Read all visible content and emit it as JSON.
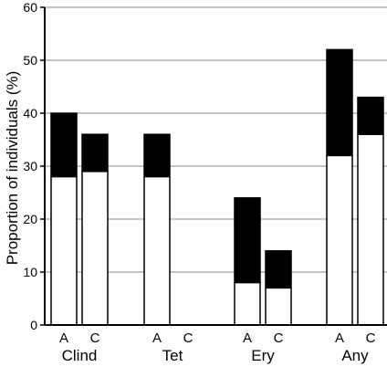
{
  "chart_data": {
    "type": "bar",
    "stacked": true,
    "title": "",
    "xlabel": "",
    "ylabel": "Proportion of individuals (%)",
    "ylim": [
      0,
      60
    ],
    "yticks": [
      0,
      10,
      20,
      30,
      40,
      50,
      60
    ],
    "grid": "horizontal",
    "colors": {
      "lower": "#ffffff",
      "upper": "#000000",
      "outline": "#000000",
      "grid": "#888888"
    },
    "groups": [
      {
        "label": "Clind",
        "bars": [
          {
            "label": "A",
            "lower": 28,
            "total": 40
          },
          {
            "label": "C",
            "lower": 29,
            "total": 36
          }
        ]
      },
      {
        "label": "Tet",
        "bars": [
          {
            "label": "A",
            "lower": 28,
            "total": 36
          },
          {
            "label": "C",
            "lower": 0,
            "total": 0
          }
        ]
      },
      {
        "label": "Ery",
        "bars": [
          {
            "label": "A",
            "lower": 8,
            "total": 24
          },
          {
            "label": "C",
            "lower": 7,
            "total": 14
          }
        ]
      },
      {
        "label": "Any",
        "bars": [
          {
            "label": "A",
            "lower": 32,
            "total": 52
          },
          {
            "label": "C",
            "lower": 36,
            "total": 43
          }
        ]
      }
    ]
  }
}
